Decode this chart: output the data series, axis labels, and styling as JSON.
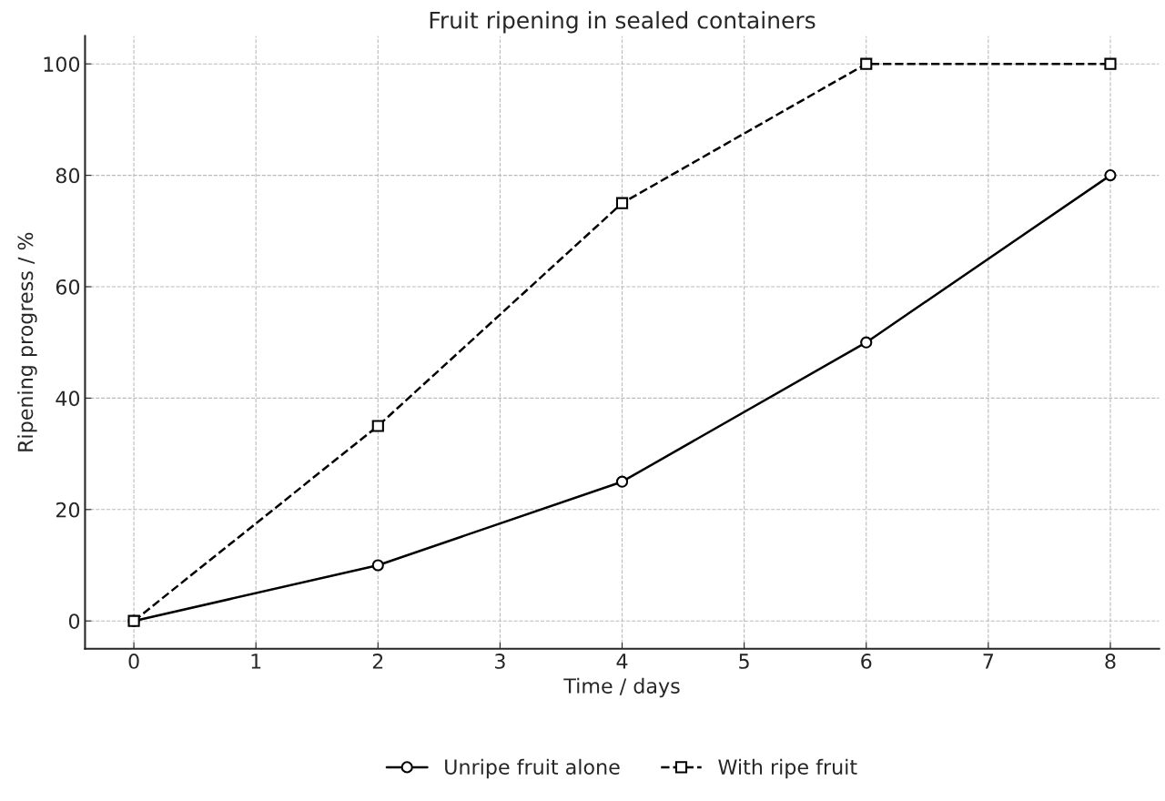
{
  "chart_data": {
    "type": "line",
    "title": "Fruit ripening in sealed containers",
    "xlabel": "Time / days",
    "ylabel": "Ripening progress / %",
    "x": [
      0,
      2,
      4,
      6,
      8
    ],
    "series": [
      {
        "name": "Unripe fruit alone",
        "color": "#000000",
        "values": [
          0,
          10,
          25,
          50,
          80
        ],
        "marker": "circle",
        "line_style": "solid"
      },
      {
        "name": "With ripe fruit",
        "color": "#000000",
        "values": [
          0,
          35,
          75,
          100,
          100
        ],
        "marker": "square",
        "line_style": "dashed"
      }
    ],
    "xlim": [
      -0.4,
      8.4
    ],
    "xticks": [
      0,
      1,
      2,
      3,
      4,
      5,
      6,
      7,
      8
    ],
    "ylim": [
      -5,
      105
    ],
    "yticks": [
      0,
      20,
      40,
      60,
      80,
      100
    ],
    "grid": true,
    "legend": "bottom"
  }
}
